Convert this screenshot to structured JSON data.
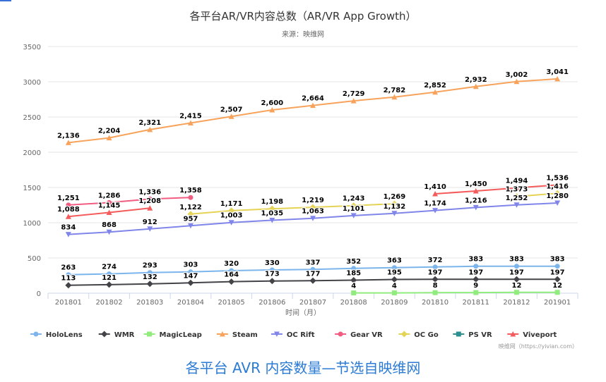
{
  "caption": "各平台 AVR 内容数量—节选自映维网",
  "chart_data": {
    "type": "line",
    "title": "各平台AR/VR内容总数（AR/VR App Growth）",
    "subtitle": "来源：映维网",
    "xlabel": "时间（月）",
    "ylabel": "",
    "ylim": [
      0,
      3500
    ],
    "yticks": [
      0,
      500,
      1000,
      1500,
      2000,
      2500,
      3000,
      3500
    ],
    "grid": true,
    "legend_position": "bottom",
    "credit": "映维网（https://yivian.com）",
    "categories": [
      "201801",
      "201802",
      "201803",
      "201804",
      "201805",
      "201806",
      "201807",
      "201808",
      "201809",
      "201810",
      "201811",
      "201812",
      "201901"
    ],
    "series": [
      {
        "name": "HoloLens",
        "color": "#7cb5ec",
        "marker": "circle",
        "values": [
          263,
          274,
          293,
          303,
          320,
          330,
          337,
          352,
          363,
          372,
          383,
          383,
          383
        ],
        "labels": [
          "263",
          "274",
          "293",
          "303",
          "320",
          "330",
          "337",
          "352",
          "363",
          "372",
          "383",
          "383",
          "383"
        ],
        "label_pos": "above"
      },
      {
        "name": "WMR",
        "color": "#434348",
        "marker": "diamond",
        "values": [
          113,
          121,
          132,
          147,
          164,
          173,
          177,
          185,
          195,
          197,
          197,
          197,
          197
        ],
        "labels": [
          "113",
          "121",
          "132",
          "147",
          "164",
          "173",
          "177",
          "185",
          "195",
          "197",
          "197",
          "197",
          "197"
        ],
        "label_pos": "above"
      },
      {
        "name": "MagicLeap",
        "color": "#90ed7d",
        "marker": "square",
        "values": [
          null,
          null,
          null,
          null,
          null,
          null,
          null,
          4,
          4,
          8,
          9,
          12,
          12
        ],
        "labels": [
          null,
          null,
          null,
          null,
          null,
          null,
          null,
          "4",
          "4",
          "8",
          "9",
          "12",
          "12"
        ],
        "label_pos": "above"
      },
      {
        "name": "Steam",
        "color": "#f7a35c",
        "marker": "triangle",
        "values": [
          2136,
          2204,
          2321,
          2415,
          2507,
          2600,
          2664,
          2729,
          2782,
          2852,
          2932,
          3002,
          3041
        ],
        "labels": [
          "2,136",
          "2,204",
          "2,321",
          "2,415",
          "2,507",
          "2,600",
          "2,664",
          "2,729",
          "2,782",
          "2,852",
          "2,932",
          "3,002",
          "3,041"
        ],
        "label_pos": "above"
      },
      {
        "name": "OC Rift",
        "color": "#8085e9",
        "marker": "triangle-down",
        "values": [
          834,
          868,
          912,
          957,
          1003,
          1035,
          1063,
          1101,
          1132,
          1174,
          1216,
          1252,
          1280
        ],
        "labels": [
          "834",
          "868",
          "912",
          "957",
          "1,003",
          "1,035",
          "1,063",
          "1,101",
          "1,132",
          "1,174",
          "1,216",
          "1,252",
          "1,280"
        ],
        "label_pos": "above"
      },
      {
        "name": "Gear VR",
        "color": "#f15c80",
        "marker": "circle",
        "values": [
          1251,
          1286,
          1336,
          1358,
          null,
          null,
          null,
          null,
          null,
          null,
          null,
          null,
          null
        ],
        "labels": [
          "1,251",
          "1,286",
          "1,336",
          "1,358",
          null,
          null,
          null,
          null,
          null,
          null,
          null,
          null,
          null
        ],
        "label_pos": "above"
      },
      {
        "name": "OC Go",
        "color": "#e4d354",
        "marker": "diamond",
        "values": [
          null,
          null,
          null,
          1122,
          1171,
          1198,
          1219,
          1243,
          1269,
          null,
          null,
          1373,
          1416
        ],
        "labels": [
          null,
          null,
          null,
          "1,122",
          "1,171",
          "1,198",
          "1,219",
          "1,243",
          "1,269",
          null,
          null,
          "1,373",
          "1,416"
        ],
        "label_pos": "above"
      },
      {
        "name": "PS VR",
        "color": "#2b908f",
        "marker": "square",
        "values": [
          null,
          null,
          null,
          null,
          null,
          null,
          null,
          null,
          null,
          null,
          null,
          null,
          null
        ],
        "labels": [],
        "label_pos": "above"
      },
      {
        "name": "Viveport",
        "color": "#f45b5b",
        "marker": "triangle",
        "values": [
          1088,
          1145,
          1208,
          null,
          null,
          null,
          null,
          null,
          null,
          1410,
          1450,
          1494,
          1536
        ],
        "labels": [
          "1,088",
          "1,145",
          "1,208",
          null,
          null,
          null,
          null,
          null,
          null,
          "1,410",
          "1,450",
          "1,494",
          "1,536"
        ],
        "label_pos": "above"
      }
    ]
  }
}
